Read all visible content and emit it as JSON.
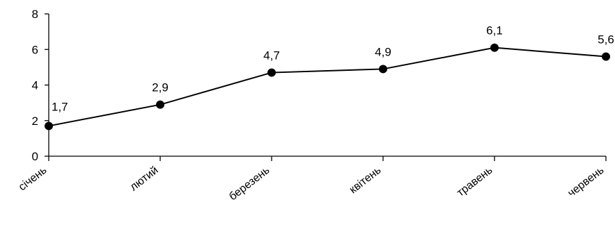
{
  "chart_data": {
    "type": "line",
    "categories": [
      "січень",
      "лютий",
      "березень",
      "квітень",
      "травень",
      "червень"
    ],
    "series": [
      {
        "values": [
          1.7,
          2.9,
          4.7,
          4.9,
          6.1,
          5.6
        ]
      }
    ],
    "data_labels": [
      "1,7",
      "2,9",
      "4,7",
      "4,9",
      "6,1",
      "5,6"
    ],
    "y_ticks": [
      "0",
      "2",
      "4",
      "6",
      "8"
    ],
    "ylim": [
      0,
      8
    ],
    "grid": false,
    "legend": "none",
    "colors": {
      "line": "#000000",
      "marker": "#000000",
      "axis": "#000000"
    }
  }
}
